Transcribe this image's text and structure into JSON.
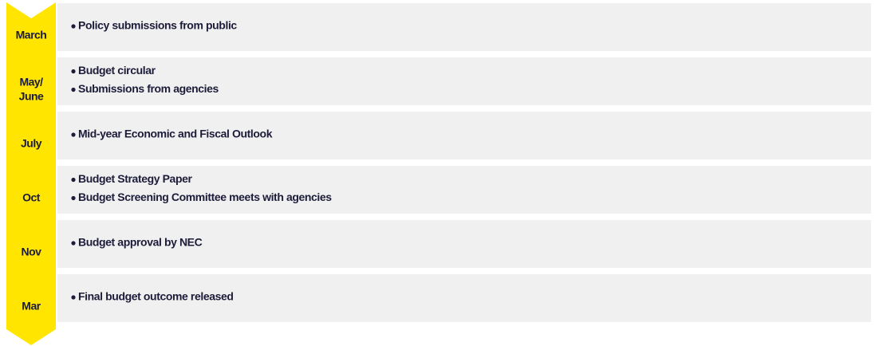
{
  "stages": [
    {
      "label": [
        "March"
      ],
      "items": [
        "Policy submissions from public"
      ]
    },
    {
      "label": [
        "May/",
        "June"
      ],
      "items": [
        "Budget circular",
        "Submissions from agencies"
      ]
    },
    {
      "label": [
        "July"
      ],
      "items": [
        "Mid-year Economic and Fiscal Outlook"
      ]
    },
    {
      "label": [
        "Oct"
      ],
      "items": [
        "Budget Strategy Paper",
        "Budget Screening Committee meets with agencies"
      ]
    },
    {
      "label": [
        "Nov"
      ],
      "items": [
        "Budget approval by NEC"
      ]
    },
    {
      "label": [
        "Mar"
      ],
      "items": [
        "Final budget outcome released"
      ]
    }
  ]
}
